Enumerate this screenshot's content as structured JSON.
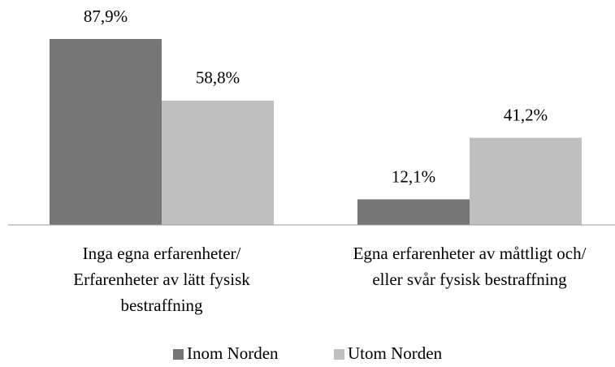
{
  "chart_data": {
    "type": "bar",
    "categories": [
      [
        "Inga egna erfarenheter/",
        "Erfarenheter av lätt fysisk",
        "bestraffning"
      ],
      [
        "Egna erfarenheter av måttligt och/",
        "eller svår fysisk bestraffning"
      ]
    ],
    "series": [
      {
        "name": "Inom Norden",
        "color": "#767676",
        "values": [
          87.9,
          12.1
        ],
        "value_labels": [
          "87,9%",
          "12,1%"
        ]
      },
      {
        "name": "Utom Norden",
        "color": "#c0c0c0",
        "values": [
          58.8,
          41.2
        ],
        "value_labels": [
          "58,8%",
          "41,2%"
        ]
      }
    ]
  }
}
